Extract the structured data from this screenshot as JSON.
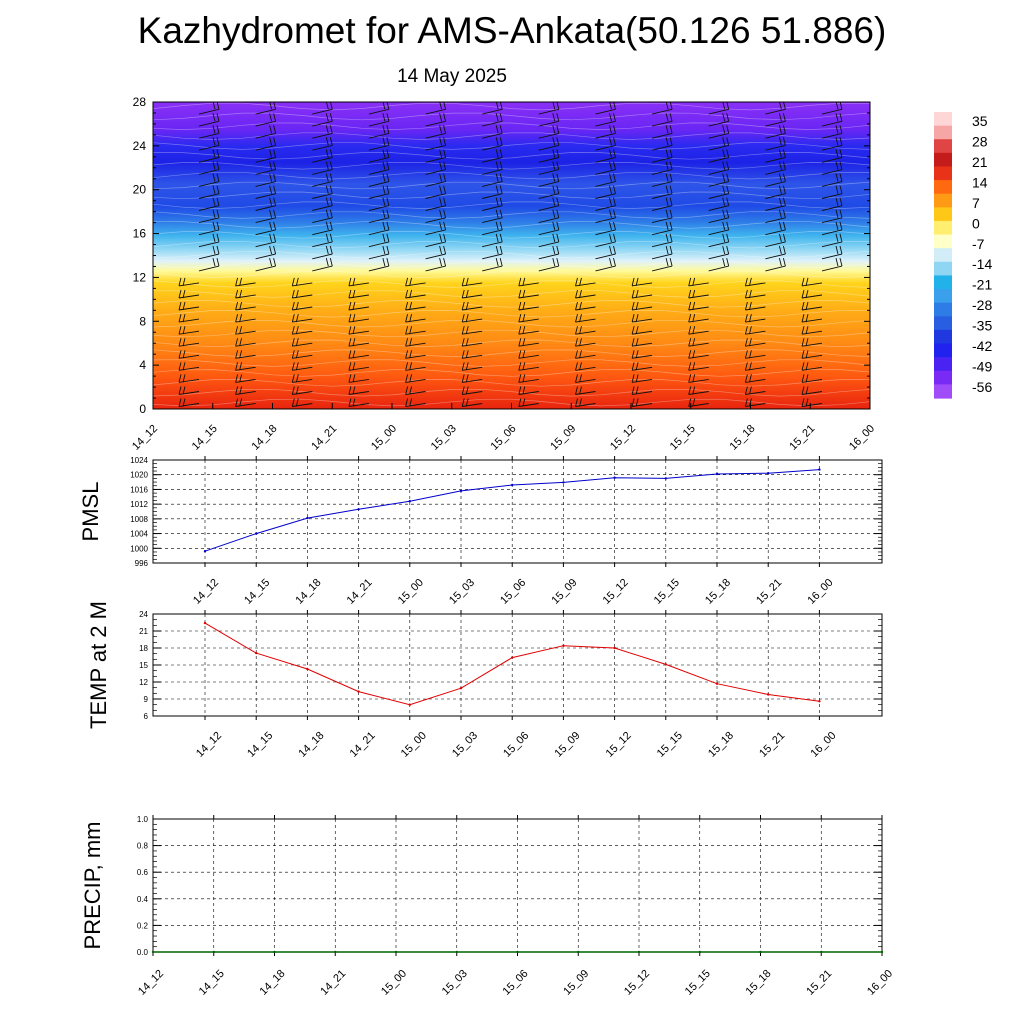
{
  "title": "Kazhydromet for AMS-Ankata(50.126 51.886)",
  "subtitle": "14 May 2025",
  "chart_data": [
    {
      "type": "heatmap",
      "name": "upper-air-section",
      "x_labels": [
        "14_12",
        "14_15",
        "14_18",
        "14_21",
        "15_00",
        "15_03",
        "15_06",
        "15_09",
        "15_12",
        "15_15",
        "15_18",
        "15_21",
        "16_00"
      ],
      "y_ticks": [
        0,
        4,
        8,
        12,
        16,
        20,
        24,
        28
      ],
      "ylim": [
        0,
        28
      ],
      "colorbar": {
        "labels": [
          "35",
          "28",
          "21",
          "14",
          "7",
          "0",
          "-7",
          "-14",
          "-21",
          "-28",
          "-35",
          "-42",
          "-49",
          "-56"
        ],
        "colors": [
          "#ffd6d6",
          "#f7a6a6",
          "#e04545",
          "#c41b1b",
          "#e83318",
          "#ff6a10",
          "#ff9a14",
          "#ffc818",
          "#ffee70",
          "#ffffc8",
          "#d2ecf8",
          "#8fd6f2",
          "#22b2ea",
          "#3aa0ec",
          "#2e7de6",
          "#285ee2",
          "#2038e0",
          "#2222ee",
          "#4a22f2",
          "#7a2af5",
          "#a04cf8"
        ]
      },
      "bands": [
        {
          "y": 0,
          "color": "#e8230f"
        },
        {
          "y": 3,
          "color": "#ff5a10"
        },
        {
          "y": 6,
          "color": "#ff8a14"
        },
        {
          "y": 9,
          "color": "#ffad16"
        },
        {
          "y": 11.5,
          "color": "#ffd41c"
        },
        {
          "y": 12.6,
          "color": "#fffa9a"
        },
        {
          "y": 13.5,
          "color": "#dff2fa"
        },
        {
          "y": 14.5,
          "color": "#96d9f4"
        },
        {
          "y": 15.8,
          "color": "#3fb4ee"
        },
        {
          "y": 17,
          "color": "#2f7fe8"
        },
        {
          "y": 18.5,
          "color": "#1f4ae6"
        },
        {
          "y": 20.5,
          "color": "#2e55e8"
        },
        {
          "y": 22.5,
          "color": "#1c22e6"
        },
        {
          "y": 24,
          "color": "#2a2af0"
        },
        {
          "y": 25.5,
          "color": "#6a26f4"
        },
        {
          "y": 28,
          "color": "#8a30f6"
        }
      ]
    },
    {
      "type": "line",
      "name": "pmsl",
      "ylabel": "PMSL",
      "x_labels": [
        "14_12",
        "14_15",
        "14_18",
        "14_21",
        "15_00",
        "15_03",
        "15_06",
        "15_09",
        "15_12",
        "15_15",
        "15_18",
        "15_21",
        "16_00"
      ],
      "y_ticks": [
        996,
        1000,
        1004,
        1008,
        1012,
        1016,
        1020,
        1024
      ],
      "ylim": [
        996,
        1024
      ],
      "color": "#0000cc",
      "values": [
        999.2,
        1004.0,
        1008.2,
        1010.6,
        1012.8,
        1015.6,
        1017.2,
        1017.9,
        1019.2,
        1019.0,
        1020.2,
        1020.4,
        1021.4
      ]
    },
    {
      "type": "line",
      "name": "temp-2m",
      "ylabel": "TEMP at 2 M",
      "x_labels": [
        "14_12",
        "14_15",
        "14_18",
        "14_21",
        "15_00",
        "15_03",
        "15_06",
        "15_09",
        "15_12",
        "15_15",
        "15_18",
        "15_21",
        "16_00"
      ],
      "y_ticks": [
        6,
        9,
        12,
        15,
        18,
        21,
        24
      ],
      "ylim": [
        6,
        24
      ],
      "color": "#e00000",
      "values": [
        22.4,
        17.1,
        14.3,
        10.3,
        8.0,
        10.9,
        16.3,
        18.4,
        18.0,
        15.1,
        11.7,
        9.8,
        8.6
      ]
    },
    {
      "type": "line",
      "name": "precip",
      "ylabel": "PRECIP, mm",
      "x_labels": [
        "14_12",
        "14_15",
        "14_18",
        "14_21",
        "15_00",
        "15_03",
        "15_06",
        "15_09",
        "15_12",
        "15_15",
        "15_18",
        "15_21",
        "16_00"
      ],
      "y_ticks": [
        "0.0",
        "0.2",
        "0.4",
        "0.6",
        "0.8",
        "1.0"
      ],
      "ylim": [
        0,
        1
      ],
      "color": "#006400",
      "values": [
        0,
        0,
        0,
        0,
        0,
        0,
        0,
        0,
        0,
        0,
        0,
        0,
        0
      ]
    }
  ]
}
